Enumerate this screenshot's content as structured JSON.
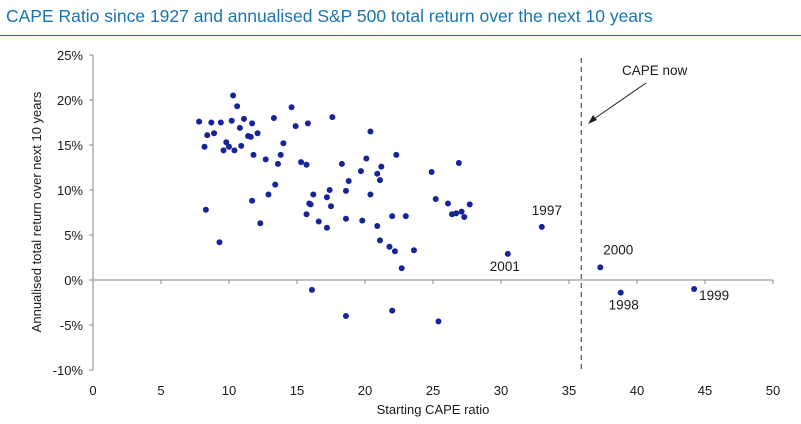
{
  "chart_data": {
    "type": "scatter",
    "title": "CAPE Ratio since 1927 and annualised S&P 500 total return over the next 10 years",
    "xlabel": "Starting CAPE ratio",
    "ylabel": "Annualised total return over next 10 years",
    "xlim": [
      0,
      50
    ],
    "ylim": [
      -10,
      25
    ],
    "x_ticks": [
      "0",
      "5",
      "10",
      "15",
      "20",
      "25",
      "30",
      "35",
      "40",
      "45",
      "50"
    ],
    "y_ticks": [
      "-10%",
      "-5%",
      "0%",
      "5%",
      "10%",
      "15%",
      "20%",
      "25%"
    ],
    "marker_color": "#17239a",
    "grid": false,
    "vline": {
      "x": 35.9,
      "style": "dashed",
      "label": "CAPE now"
    },
    "annotations": [
      {
        "text": "1997",
        "x": 33.0,
        "y": 5.9
      },
      {
        "text": "2001",
        "x": 30.5,
        "y": 2.9
      },
      {
        "text": "2000",
        "x": 37.3,
        "y": 1.4
      },
      {
        "text": "1998",
        "x": 38.8,
        "y": -1.4
      },
      {
        "text": "1999",
        "x": 44.2,
        "y": -1.0
      }
    ],
    "points": [
      [
        7.8,
        17.6
      ],
      [
        8.2,
        14.8
      ],
      [
        8.4,
        16.1
      ],
      [
        8.7,
        17.5
      ],
      [
        8.9,
        16.3
      ],
      [
        9.4,
        17.5
      ],
      [
        9.6,
        14.4
      ],
      [
        9.8,
        15.3
      ],
      [
        10.0,
        14.8
      ],
      [
        10.2,
        17.7
      ],
      [
        10.3,
        20.5
      ],
      [
        10.4,
        14.4
      ],
      [
        10.6,
        19.3
      ],
      [
        10.8,
        16.9
      ],
      [
        10.9,
        14.9
      ],
      [
        11.1,
        17.9
      ],
      [
        11.4,
        16.0
      ],
      [
        11.6,
        15.9
      ],
      [
        11.7,
        17.4
      ],
      [
        11.8,
        13.9
      ],
      [
        12.1,
        16.3
      ],
      [
        12.7,
        13.4
      ],
      [
        13.3,
        18.0
      ],
      [
        13.6,
        12.9
      ],
      [
        13.8,
        13.9
      ],
      [
        14.0,
        15.2
      ],
      [
        14.6,
        19.2
      ],
      [
        14.9,
        17.1
      ],
      [
        15.3,
        13.1
      ],
      [
        15.8,
        17.4
      ],
      [
        15.7,
        12.8
      ],
      [
        8.3,
        7.8
      ],
      [
        9.3,
        4.2
      ],
      [
        11.7,
        8.8
      ],
      [
        12.3,
        6.3
      ],
      [
        12.9,
        9.5
      ],
      [
        13.4,
        10.6
      ],
      [
        15.7,
        7.3
      ],
      [
        15.9,
        8.5
      ],
      [
        16.0,
        8.4
      ],
      [
        16.2,
        9.5
      ],
      [
        16.6,
        6.5
      ],
      [
        17.2,
        9.2
      ],
      [
        17.4,
        10.0
      ],
      [
        17.5,
        8.2
      ],
      [
        17.2,
        5.8
      ],
      [
        17.6,
        18.1
      ],
      [
        18.3,
        12.9
      ],
      [
        18.6,
        9.9
      ],
      [
        18.6,
        6.8
      ],
      [
        18.8,
        11.0
      ],
      [
        19.7,
        12.1
      ],
      [
        19.8,
        6.6
      ],
      [
        20.1,
        13.5
      ],
      [
        20.4,
        16.5
      ],
      [
        20.4,
        9.5
      ],
      [
        20.9,
        11.8
      ],
      [
        20.9,
        6.0
      ],
      [
        21.1,
        11.1
      ],
      [
        21.2,
        12.6
      ],
      [
        21.1,
        4.4
      ],
      [
        21.8,
        3.7
      ],
      [
        22.0,
        7.1
      ],
      [
        22.3,
        13.9
      ],
      [
        22.2,
        3.2
      ],
      [
        22.7,
        1.3
      ],
      [
        23.0,
        7.1
      ],
      [
        23.6,
        3.3
      ],
      [
        24.9,
        12.0
      ],
      [
        25.2,
        9.0
      ],
      [
        26.1,
        8.5
      ],
      [
        26.7,
        7.4
      ],
      [
        26.9,
        13.0
      ],
      [
        27.1,
        7.6
      ],
      [
        27.3,
        7.0
      ],
      [
        27.7,
        8.4
      ],
      [
        26.4,
        7.3
      ],
      [
        30.5,
        2.9
      ],
      [
        33.0,
        5.9
      ],
      [
        37.3,
        1.4
      ],
      [
        38.8,
        -1.4
      ],
      [
        44.2,
        -1.0
      ],
      [
        16.1,
        -1.1
      ],
      [
        18.6,
        -4.0
      ],
      [
        22.0,
        -3.4
      ],
      [
        25.4,
        -4.6
      ]
    ]
  }
}
